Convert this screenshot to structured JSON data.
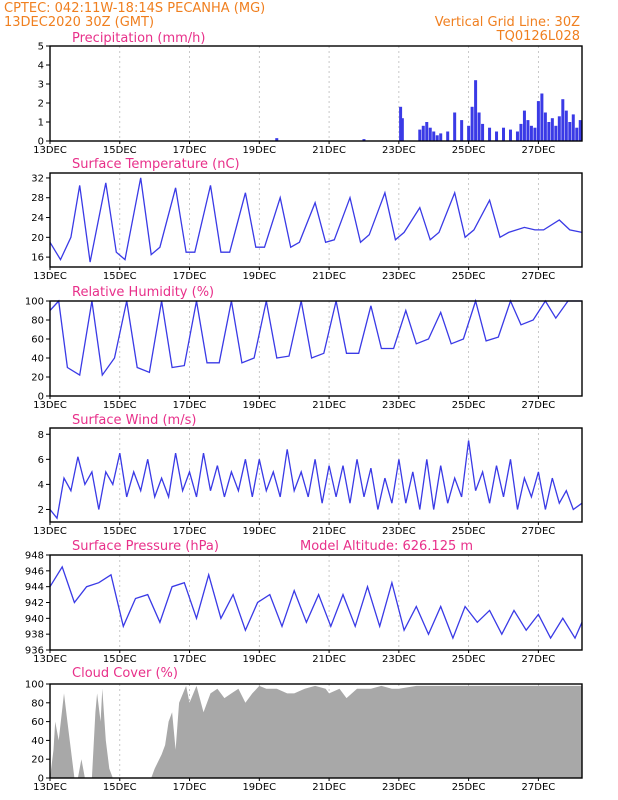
{
  "header": {
    "line1": "CPTEC:   042:11W-18:14S   PECANHA (MG)",
    "line2": "13DEC2020 30Z (GMT)",
    "right1": "Vertical Grid Line: 30Z",
    "right2": "TQ0126L028"
  },
  "colors": {
    "header": "#f07f1f",
    "title": "#e8308a",
    "series": "#3a3ae6",
    "cloud": "#a8a8a8",
    "frame": "#000000"
  },
  "x_axis": {
    "labels": [
      "13DEC",
      "15DEC",
      "17DEC",
      "19DEC",
      "21DEC",
      "23DEC",
      "25DEC",
      "27DEC"
    ],
    "label_days": [
      0,
      2,
      4,
      6,
      8,
      10,
      12,
      14
    ],
    "domain_days": [
      0,
      15.25
    ]
  },
  "panels": {
    "precip": {
      "title": "Precipitation (mm/h)"
    },
    "temp": {
      "title": "Surface Temperature (nC)"
    },
    "rh": {
      "title": "Relative Humidity (%)"
    },
    "wind": {
      "title": "Surface Wind (m/s)"
    },
    "pres": {
      "title": "Surface Pressure (hPa)",
      "extra": "Model Altitude: 626.125 m"
    },
    "cloud": {
      "title": "Cloud Cover (%)"
    }
  },
  "chart_data": [
    {
      "type": "bar",
      "title": "Precipitation (mm/h)",
      "ylim": [
        0,
        5
      ],
      "yticks": [
        0,
        1,
        2,
        3,
        4,
        5
      ],
      "x": [
        6.5,
        9.0,
        10.05,
        10.1,
        10.6,
        10.7,
        10.8,
        10.9,
        11.0,
        11.1,
        11.2,
        11.4,
        11.6,
        11.8,
        12.0,
        12.1,
        12.2,
        12.3,
        12.4,
        12.6,
        12.8,
        13.0,
        13.2,
        13.4,
        13.5,
        13.6,
        13.7,
        13.8,
        13.9,
        14.0,
        14.1,
        14.2,
        14.3,
        14.4,
        14.5,
        14.6,
        14.7,
        14.8,
        14.9,
        15.0,
        15.1,
        15.2
      ],
      "values": [
        0.15,
        0.1,
        1.8,
        1.2,
        0.6,
        0.8,
        1.0,
        0.7,
        0.5,
        0.3,
        0.4,
        0.5,
        1.5,
        1.1,
        0.8,
        1.8,
        3.2,
        1.5,
        0.9,
        0.7,
        0.5,
        0.7,
        0.6,
        0.5,
        0.9,
        1.6,
        1.1,
        0.8,
        0.7,
        2.1,
        2.5,
        1.5,
        1.0,
        1.2,
        0.8,
        1.3,
        2.2,
        1.6,
        1.0,
        1.4,
        0.7,
        1.1
      ]
    },
    {
      "type": "line",
      "title": "Surface Temperature (nC)",
      "ylim": [
        14,
        33
      ],
      "yticks": [
        16,
        20,
        24,
        28,
        32
      ],
      "x": [
        0,
        0.3,
        0.6,
        0.85,
        1.15,
        1.6,
        1.9,
        2.15,
        2.6,
        2.9,
        3.15,
        3.6,
        3.9,
        4.15,
        4.6,
        4.9,
        5.15,
        5.6,
        5.9,
        6.15,
        6.6,
        6.9,
        7.15,
        7.6,
        7.9,
        8.15,
        8.6,
        8.9,
        9.15,
        9.6,
        9.9,
        10.15,
        10.6,
        10.9,
        11.15,
        11.6,
        11.9,
        12.15,
        12.6,
        12.9,
        13.15,
        13.6,
        13.9,
        14.15,
        14.6,
        14.9,
        15.25
      ],
      "values": [
        19,
        15.5,
        20,
        30.5,
        15,
        31,
        17,
        15.5,
        32,
        16.5,
        18,
        30,
        17,
        17,
        30.5,
        17,
        17,
        29,
        18,
        18,
        28,
        18,
        19,
        27,
        19,
        19.5,
        28,
        19,
        20.5,
        29,
        19.5,
        21,
        26,
        19.5,
        21,
        29,
        20,
        21.5,
        27.5,
        20,
        21,
        22,
        21.5,
        21.5,
        23.5,
        21.5,
        21
      ]
    },
    {
      "type": "line",
      "title": "Relative Humidity (%)",
      "ylim": [
        0,
        100
      ],
      "yticks": [
        0,
        20,
        40,
        60,
        80,
        100
      ],
      "x": [
        0,
        0.25,
        0.5,
        0.85,
        1.2,
        1.5,
        1.85,
        2.2,
        2.5,
        2.85,
        3.2,
        3.5,
        3.85,
        4.2,
        4.5,
        4.85,
        5.2,
        5.5,
        5.85,
        6.2,
        6.5,
        6.85,
        7.2,
        7.5,
        7.85,
        8.2,
        8.5,
        8.85,
        9.2,
        9.5,
        9.85,
        10.2,
        10.5,
        10.85,
        11.2,
        11.5,
        11.85,
        12.2,
        12.5,
        12.85,
        13.2,
        13.5,
        13.85,
        14.2,
        14.5,
        14.85,
        15.25
      ],
      "values": [
        90,
        100,
        30,
        22,
        100,
        22,
        40,
        100,
        30,
        25,
        100,
        30,
        32,
        100,
        35,
        35,
        100,
        35,
        40,
        100,
        40,
        42,
        100,
        40,
        45,
        100,
        45,
        45,
        95,
        50,
        50,
        90,
        55,
        60,
        88,
        55,
        60,
        100,
        58,
        62,
        100,
        75,
        80,
        100,
        82,
        100,
        100
      ]
    },
    {
      "type": "line",
      "title": "Surface Wind (m/s)",
      "ylim": [
        1,
        8.5
      ],
      "yticks": [
        2,
        4,
        6,
        8
      ],
      "x": [
        0,
        0.2,
        0.4,
        0.6,
        0.8,
        1.0,
        1.2,
        1.4,
        1.6,
        1.8,
        2.0,
        2.2,
        2.4,
        2.6,
        2.8,
        3.0,
        3.2,
        3.4,
        3.6,
        3.8,
        4.0,
        4.2,
        4.4,
        4.6,
        4.8,
        5.0,
        5.2,
        5.4,
        5.6,
        5.8,
        6.0,
        6.2,
        6.4,
        6.6,
        6.8,
        7.0,
        7.2,
        7.4,
        7.6,
        7.8,
        8.0,
        8.2,
        8.4,
        8.6,
        8.8,
        9.0,
        9.2,
        9.4,
        9.6,
        9.8,
        10.0,
        10.2,
        10.4,
        10.6,
        10.8,
        11.0,
        11.2,
        11.4,
        11.6,
        11.8,
        12.0,
        12.2,
        12.4,
        12.6,
        12.8,
        13.0,
        13.2,
        13.4,
        13.6,
        13.8,
        14.0,
        14.2,
        14.4,
        14.6,
        14.8,
        15.0,
        15.25
      ],
      "values": [
        2,
        1.3,
        4.5,
        3.5,
        6.2,
        4,
        5,
        2,
        5,
        4,
        6.5,
        3,
        5,
        3.5,
        6,
        3,
        4.5,
        3,
        6.5,
        3.5,
        5,
        3,
        6.5,
        3.5,
        5.5,
        3,
        5,
        3.5,
        6,
        3,
        6,
        3.5,
        5,
        3,
        6.8,
        3.5,
        5,
        3,
        6,
        2.5,
        5.5,
        3,
        5.5,
        2.5,
        6,
        3,
        5.3,
        2,
        4.5,
        2.5,
        6,
        2.5,
        5,
        2,
        6,
        2,
        5.5,
        2.5,
        4.5,
        3,
        7.5,
        3.5,
        5,
        2.5,
        5.5,
        3,
        6,
        2,
        4.5,
        3,
        5,
        2,
        4.5,
        2.5,
        3.5,
        2,
        2.5
      ]
    },
    {
      "type": "line",
      "title": "Surface Pressure (hPa)",
      "ylim": [
        936,
        948
      ],
      "yticks": [
        936,
        938,
        940,
        942,
        944,
        946,
        948
      ],
      "x": [
        0,
        0.35,
        0.7,
        1.05,
        1.4,
        1.75,
        2.1,
        2.45,
        2.8,
        3.15,
        3.5,
        3.85,
        4.2,
        4.55,
        4.9,
        5.25,
        5.6,
        5.95,
        6.3,
        6.65,
        7.0,
        7.35,
        7.7,
        8.05,
        8.4,
        8.75,
        9.1,
        9.45,
        9.8,
        10.15,
        10.5,
        10.85,
        11.2,
        11.55,
        11.9,
        12.25,
        12.6,
        12.95,
        13.3,
        13.65,
        14.0,
        14.35,
        14.7,
        15.05,
        15.25
      ],
      "values": [
        944,
        946.5,
        942,
        944,
        944.5,
        945.5,
        939,
        942.5,
        943,
        939.5,
        944,
        944.5,
        940,
        945.5,
        940,
        943,
        938.5,
        942,
        943,
        939,
        943.5,
        939.5,
        943,
        939,
        943,
        939,
        944,
        939,
        944.5,
        938.5,
        941.5,
        938,
        941.5,
        937.5,
        941.5,
        939.5,
        941,
        938,
        941,
        938.5,
        940.5,
        937.5,
        940,
        937.5,
        939.5
      ]
    },
    {
      "type": "area",
      "title": "Cloud Cover (%)",
      "ylim": [
        0,
        100
      ],
      "yticks": [
        0,
        20,
        40,
        60,
        80,
        100
      ],
      "x": [
        0,
        0.1,
        0.15,
        0.25,
        0.4,
        0.5,
        0.7,
        0.8,
        0.9,
        1.0,
        1.2,
        1.3,
        1.35,
        1.45,
        1.5,
        1.6,
        1.7,
        1.8,
        2.0,
        2.2,
        2.4,
        2.5,
        2.7,
        2.9,
        3.0,
        3.2,
        3.3,
        3.4,
        3.5,
        3.6,
        3.7,
        3.9,
        4.0,
        4.2,
        4.4,
        4.6,
        4.8,
        5.0,
        5.2,
        5.4,
        5.6,
        5.8,
        6.0,
        6.2,
        6.5,
        6.8,
        7.0,
        7.3,
        7.6,
        7.9,
        8.0,
        8.3,
        8.5,
        8.8,
        9.0,
        9.2,
        9.5,
        9.8,
        10.0,
        10.5,
        11.0,
        11.5,
        12.0,
        12.5,
        13.0,
        13.5,
        14.0,
        14.5,
        15.0,
        15.25
      ],
      "values": [
        0,
        30,
        60,
        40,
        90,
        60,
        0,
        0,
        20,
        0,
        0,
        70,
        90,
        60,
        95,
        40,
        10,
        0,
        0,
        0,
        0,
        0,
        0,
        0,
        10,
        25,
        35,
        60,
        70,
        30,
        80,
        98,
        80,
        98,
        70,
        90,
        95,
        85,
        90,
        95,
        80,
        90,
        98,
        95,
        95,
        90,
        90,
        95,
        98,
        95,
        90,
        95,
        85,
        95,
        95,
        95,
        98,
        95,
        95,
        98,
        98,
        98,
        98,
        98,
        98,
        98,
        98,
        98,
        98,
        98
      ]
    }
  ]
}
